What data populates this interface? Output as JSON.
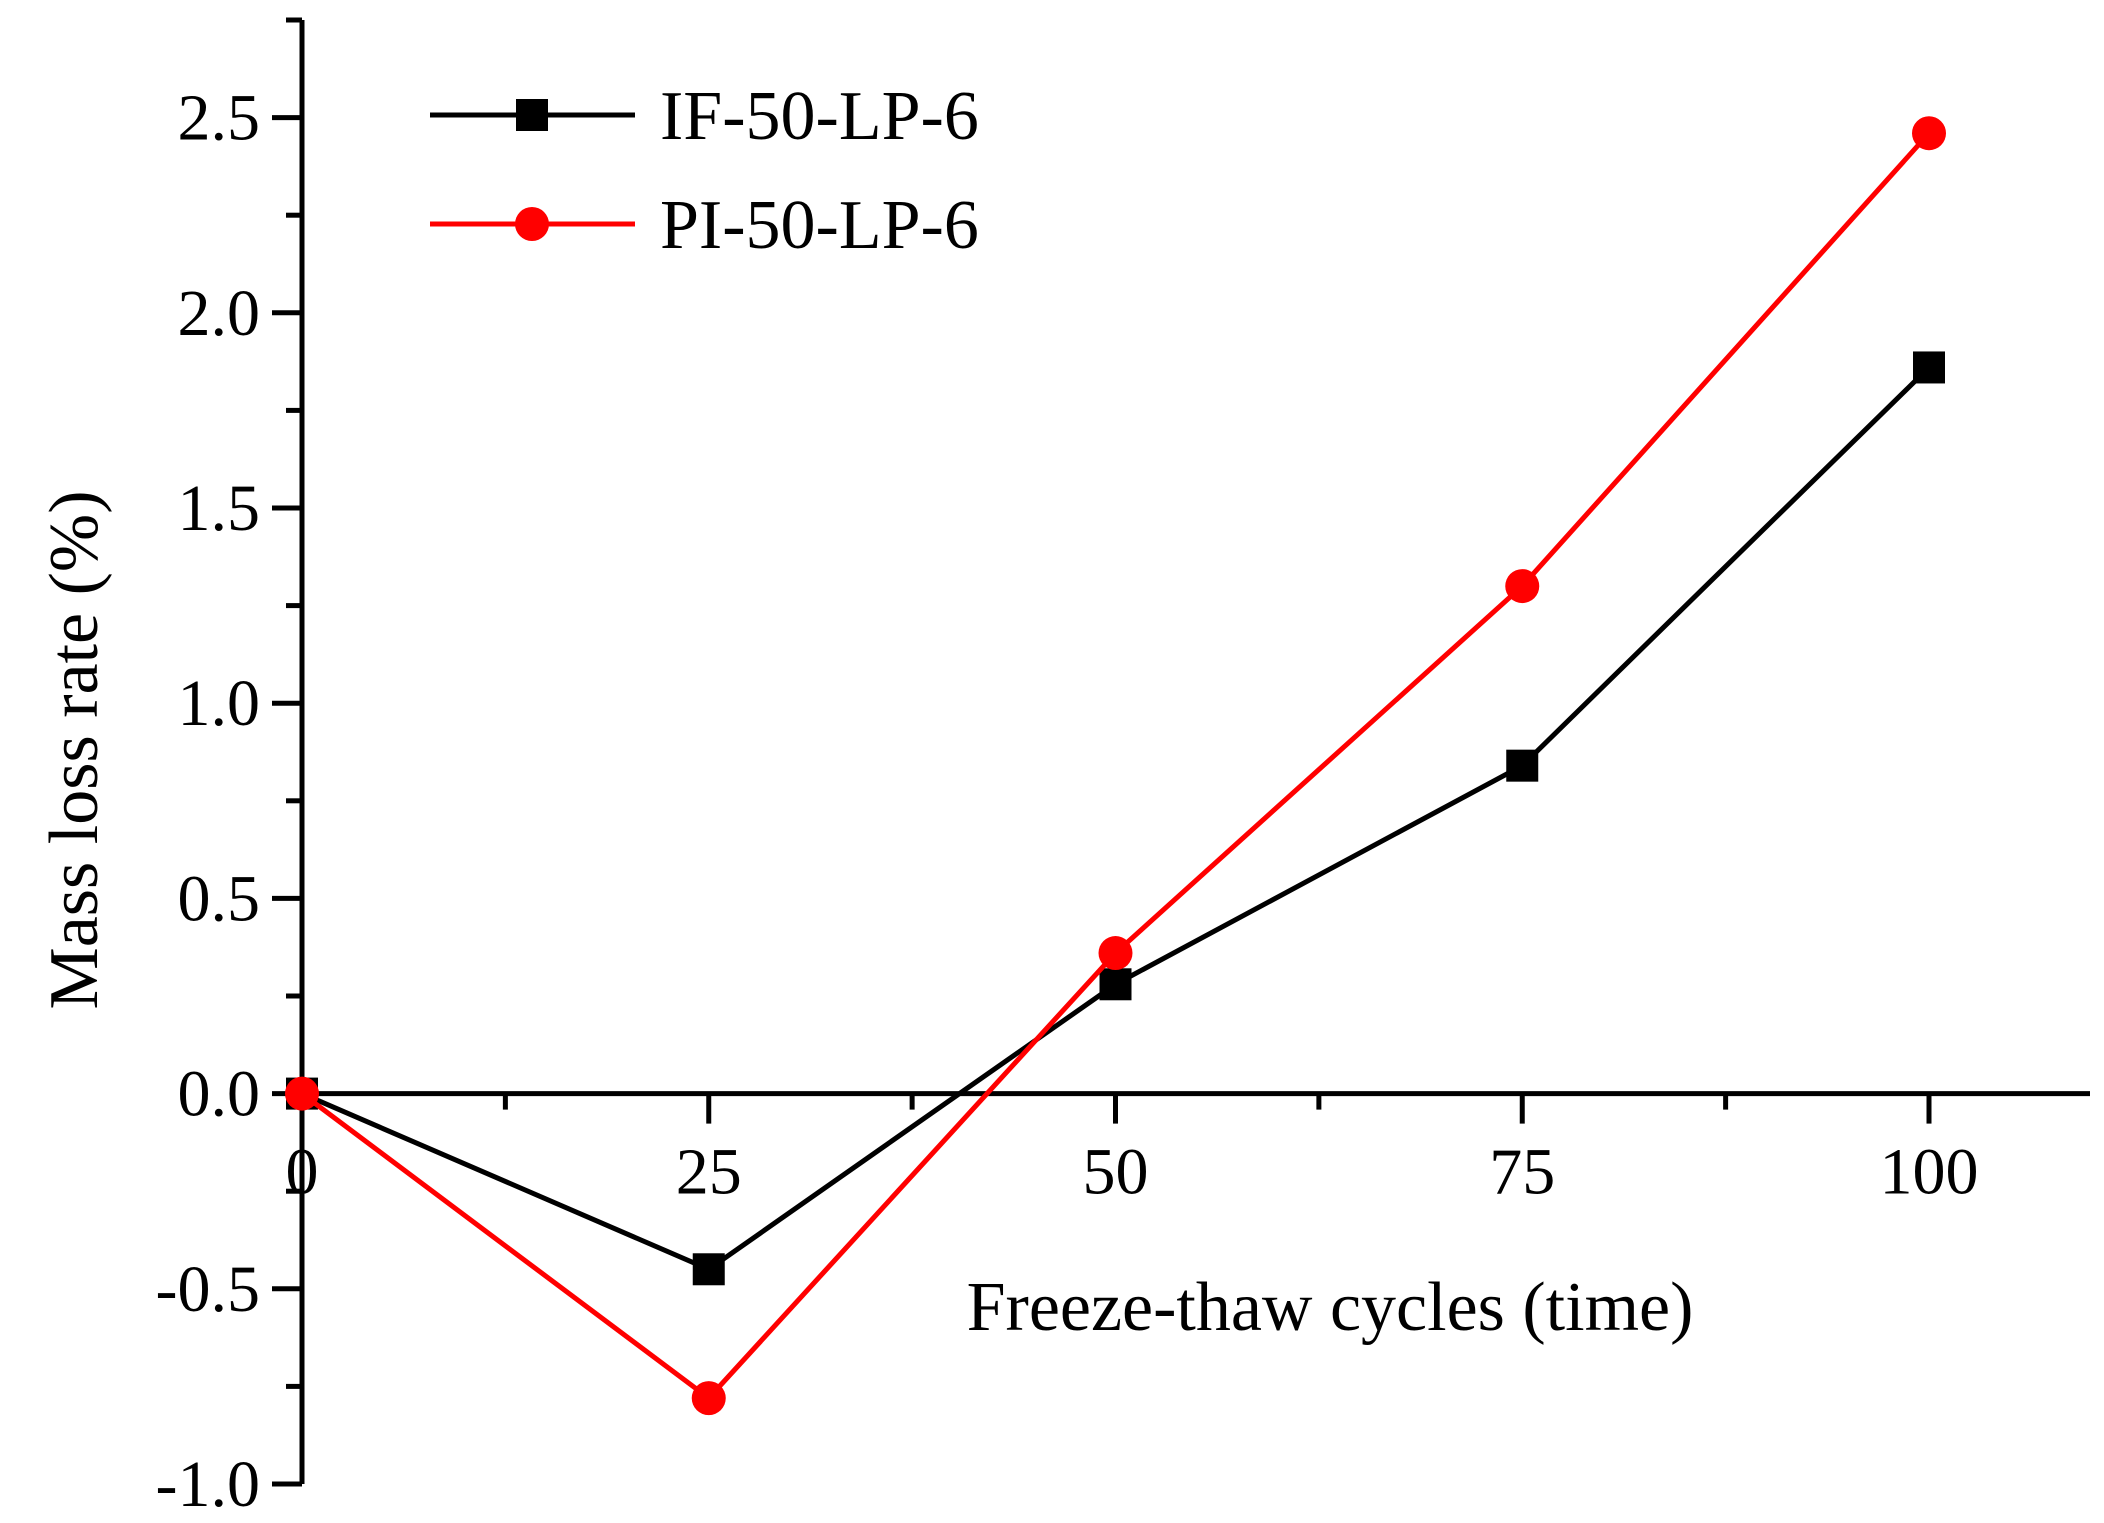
{
  "chart_data": {
    "type": "line",
    "title": "",
    "xlabel": "Freeze-thaw cycles (time)",
    "ylabel": "Mass loss rate (%)",
    "x": [
      0,
      25,
      50,
      75,
      100
    ],
    "xlim": [
      0,
      110
    ],
    "ylim": [
      -1.0,
      2.75
    ],
    "x_ticks": [
      0,
      25,
      50,
      75,
      100
    ],
    "x_tick_labels": [
      "0",
      "25",
      "50",
      "75",
      "100"
    ],
    "y_ticks": [
      -1.0,
      -0.5,
      0.0,
      0.5,
      1.0,
      1.5,
      2.0,
      2.5
    ],
    "y_tick_labels": [
      "-1.0",
      "-0.5",
      "0.0",
      "0.5",
      "1.0",
      "1.5",
      "2.0",
      "2.5"
    ],
    "grid": false,
    "legend_position": "top-left",
    "series": [
      {
        "name": "IF-50-LP-6",
        "color": "#000000",
        "marker": "square",
        "values": [
          0.0,
          -0.45,
          0.28,
          0.84,
          1.86
        ]
      },
      {
        "name": "PI-50-LP-6",
        "color": "#ff0000",
        "marker": "circle",
        "values": [
          0.0,
          -0.78,
          0.36,
          1.3,
          2.46
        ]
      }
    ]
  }
}
